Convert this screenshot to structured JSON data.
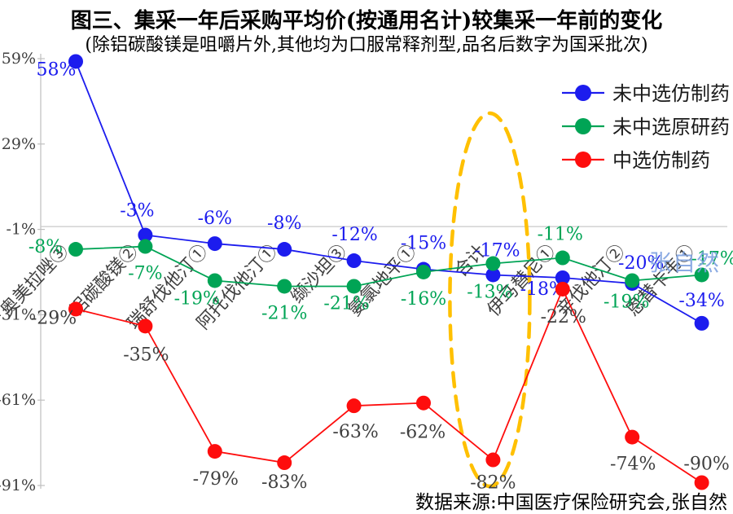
{
  "page": {
    "title": "图三、集采一年后采购平均价(按通用名计)较集采一年前的变化",
    "subtitle": "(除铝碳酸镁是咀嚼片外,其他均为口服常释剂型,品名后数字为国采批次)",
    "source": "数据来源:中国医疗保险研究会,张自然",
    "watermark": "张自然"
  },
  "chart_data": {
    "type": "line",
    "title": "图三、集采一年后采购平均价(按通用名计)较集采一年前的变化",
    "categories": [
      "奥美拉唑③",
      "铝碳酸镁②",
      "瑞舒伐他汀①",
      "阿托伐他汀①",
      "缬沙坦③",
      "氨氯地平①",
      "合计",
      "伊马替尼①",
      "辛伐他汀②",
      "恩替卡韦①"
    ],
    "series": [
      {
        "name": "未中选仿制药",
        "color": "#1C1CEE",
        "label_color": "#1C1CEE",
        "values": [
          58,
          -3,
          -6,
          -8,
          -12,
          -15,
          -17,
          -18,
          -20,
          -34
        ]
      },
      {
        "name": "未中选原研药",
        "color": "#00A455",
        "label_color": "#00A455",
        "values": [
          -8,
          -7,
          -19,
          -21,
          -21,
          -16,
          -13,
          -11,
          -19,
          -17
        ]
      },
      {
        "name": "中选仿制药",
        "color": "#FE0D0D",
        "label_color": "#3F3F3F",
        "values": [
          -29,
          -35,
          -79,
          -83,
          -63,
          -62,
          -82,
          -22,
          -74,
          -90
        ]
      }
    ],
    "y_tick_values": [
      59,
      29,
      -1,
      -31,
      -61,
      -91
    ],
    "y_tick_labels": [
      "59%",
      "29%",
      "-1%",
      "-31%",
      "-61%",
      "-91%"
    ],
    "ylim": [
      -91,
      59
    ],
    "gridlines": "single horizontal baseline at 0%",
    "legend_position": "top-right",
    "axis_color": "#BFBFBF",
    "tick_label_color": "#404040",
    "category_label_color": "#3F3F3F",
    "annotation": {
      "type": "dashed-ellipse",
      "color": "#FFC000",
      "category": "合计",
      "category_index": 6
    }
  }
}
